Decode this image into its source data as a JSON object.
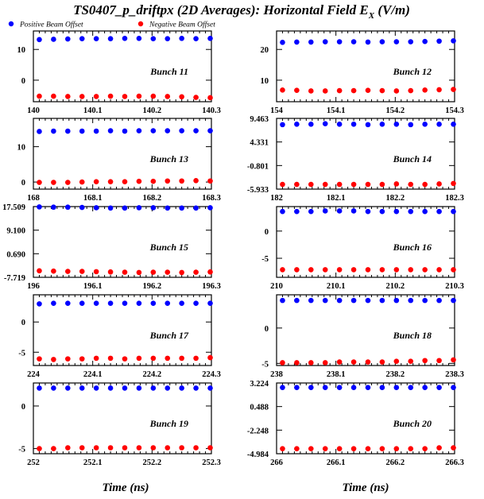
{
  "title": "TS0407_p_driftpx (2D Averages): Horizontal Field E",
  "title_sub": "X",
  "title_unit": "(V/m)",
  "legend": [
    {
      "label": "Positive Beam Offset",
      "color": "#0000ff"
    },
    {
      "label": "Negative Beam Offset",
      "color": "#ff0000"
    }
  ],
  "xlabel": "Time (ns)",
  "colors": {
    "positive": "#0000ff",
    "negative": "#ff0000",
    "frame": "#000000"
  },
  "chart_data": [
    {
      "type": "scatter",
      "panel": "Bunch 11",
      "xlim": [
        140,
        140.3
      ],
      "ylim": [
        -7,
        16
      ],
      "xticks": [
        "140",
        "140.1",
        "140.2",
        "140.3"
      ],
      "yticks": [
        0,
        10
      ],
      "ytick_labels": [
        "0",
        "10"
      ],
      "x": [
        140.01,
        140.034,
        140.058,
        140.082,
        140.106,
        140.13,
        140.154,
        140.178,
        140.202,
        140.226,
        140.25,
        140.274,
        140.298
      ],
      "series": [
        {
          "name": "Positive Beam Offset",
          "values": [
            13.2,
            13.3,
            13.4,
            13.5,
            13.5,
            13.5,
            13.6,
            13.6,
            13.5,
            13.5,
            13.6,
            13.5,
            13.6
          ]
        },
        {
          "name": "Negative Beam Offset",
          "values": [
            -5.2,
            -5.2,
            -5.3,
            -5.3,
            -5.3,
            -5.2,
            -5.3,
            -5.2,
            -5.2,
            -5.3,
            -5.4,
            -5.6,
            -5.7
          ]
        }
      ]
    },
    {
      "type": "scatter",
      "panel": "Bunch 12",
      "xlim": [
        154,
        154.3
      ],
      "ylim": [
        3,
        26
      ],
      "xticks": [
        "154",
        "154.1",
        "154.2",
        "154.3"
      ],
      "yticks": [
        10,
        20
      ],
      "ytick_labels": [
        "10",
        "20"
      ],
      "x": [
        154.01,
        154.034,
        154.058,
        154.082,
        154.106,
        154.13,
        154.154,
        154.178,
        154.202,
        154.226,
        154.25,
        154.274,
        154.298
      ],
      "series": [
        {
          "name": "Positive Beam Offset",
          "values": [
            22.3,
            22.4,
            22.4,
            22.5,
            22.5,
            22.5,
            22.4,
            22.5,
            22.5,
            22.5,
            22.6,
            22.7,
            22.8
          ]
        },
        {
          "name": "Negative Beam Offset",
          "values": [
            6.8,
            6.7,
            6.5,
            6.5,
            6.6,
            6.6,
            6.7,
            6.6,
            6.5,
            6.6,
            6.8,
            6.9,
            7.0
          ]
        }
      ]
    },
    {
      "type": "scatter",
      "panel": "Bunch 13",
      "xlim": [
        168,
        168.3
      ],
      "ylim": [
        -2,
        18
      ],
      "xticks": [
        "168",
        "168.1",
        "168.2",
        "168.3"
      ],
      "yticks": [
        0,
        10
      ],
      "ytick_labels": [
        "0",
        "10"
      ],
      "x": [
        168.01,
        168.034,
        168.058,
        168.082,
        168.106,
        168.13,
        168.154,
        168.178,
        168.202,
        168.226,
        168.25,
        168.274,
        168.298
      ],
      "series": [
        {
          "name": "Positive Beam Offset",
          "values": [
            14.3,
            14.4,
            14.4,
            14.4,
            14.4,
            14.5,
            14.4,
            14.5,
            14.5,
            14.5,
            14.5,
            14.5,
            14.5
          ]
        },
        {
          "name": "Negative Beam Offset",
          "values": [
            -0.1,
            -0.1,
            -0.1,
            0.0,
            0.1,
            0.1,
            0.1,
            0.2,
            0.2,
            0.3,
            0.3,
            0.4,
            0.3
          ]
        }
      ]
    },
    {
      "type": "scatter",
      "panel": "Bunch 14",
      "xlim": [
        182,
        182.3
      ],
      "ylim": [
        -5.933,
        9.463
      ],
      "xticks": [
        "182",
        "182.1",
        "182.2",
        "182.3"
      ],
      "yticks": [
        -5.933,
        -0.801,
        4.331,
        9.463
      ],
      "ytick_labels": [
        "-5.933",
        "-0.801",
        "4.331",
        "9.463"
      ],
      "x": [
        182.01,
        182.034,
        182.058,
        182.082,
        182.106,
        182.13,
        182.154,
        182.178,
        182.202,
        182.226,
        182.25,
        182.274,
        182.298
      ],
      "series": [
        {
          "name": "Positive Beam Offset",
          "values": [
            8.1,
            8.2,
            8.2,
            8.3,
            8.2,
            8.2,
            8.1,
            8.2,
            8.2,
            8.1,
            8.2,
            8.2,
            8.2
          ]
        },
        {
          "name": "Negative Beam Offset",
          "values": [
            -4.9,
            -4.9,
            -4.9,
            -4.9,
            -4.9,
            -4.9,
            -4.9,
            -4.9,
            -4.8,
            -4.9,
            -4.9,
            -4.8,
            -4.7
          ]
        }
      ]
    },
    {
      "type": "scatter",
      "panel": "Bunch 15",
      "xlim": [
        196,
        196.3
      ],
      "ylim": [
        -7.719,
        17.509
      ],
      "xticks": [
        "196",
        "196.1",
        "196.2",
        "196.3"
      ],
      "yticks": [
        -7.719,
        0.69,
        9.1,
        17.509
      ],
      "ytick_labels": [
        "-7.719",
        "0.690",
        "9.100",
        "17.509"
      ],
      "x": [
        196.01,
        196.034,
        196.058,
        196.082,
        196.106,
        196.13,
        196.154,
        196.178,
        196.202,
        196.226,
        196.25,
        196.274,
        196.298
      ],
      "series": [
        {
          "name": "Positive Beam Offset",
          "values": [
            17.4,
            17.3,
            17.3,
            17.2,
            17.1,
            17.0,
            17.0,
            17.1,
            17.1,
            17.0,
            17.0,
            17.0,
            17.1
          ]
        },
        {
          "name": "Negative Beam Offset",
          "values": [
            -5.4,
            -5.5,
            -5.6,
            -5.6,
            -5.7,
            -5.8,
            -5.9,
            -6.0,
            -5.9,
            -5.9,
            -6.0,
            -5.9,
            -5.8
          ]
        }
      ]
    },
    {
      "type": "scatter",
      "panel": "Bunch 16",
      "xlim": [
        210,
        210.3
      ],
      "ylim": [
        -8.5,
        4.5
      ],
      "xticks": [
        "210",
        "210.1",
        "210.2",
        "210.3"
      ],
      "yticks": [
        -5,
        0
      ],
      "ytick_labels": [
        "-5",
        "0"
      ],
      "x": [
        210.01,
        210.034,
        210.058,
        210.082,
        210.106,
        210.13,
        210.154,
        210.178,
        210.202,
        210.226,
        210.25,
        210.274,
        210.298
      ],
      "series": [
        {
          "name": "Positive Beam Offset",
          "values": [
            3.6,
            3.6,
            3.6,
            3.7,
            3.7,
            3.7,
            3.6,
            3.6,
            3.6,
            3.6,
            3.6,
            3.6,
            3.6
          ]
        },
        {
          "name": "Negative Beam Offset",
          "values": [
            -7.1,
            -7.1,
            -7.1,
            -7.1,
            -7.1,
            -7.1,
            -7.1,
            -7.1,
            -7.1,
            -7.1,
            -7.1,
            -7.1,
            -7.1
          ]
        }
      ]
    },
    {
      "type": "scatter",
      "panel": "Bunch 17",
      "xlim": [
        224,
        224.3
      ],
      "ylim": [
        -7.2,
        4.5
      ],
      "xticks": [
        "224",
        "224.1",
        "224.2",
        "224.3"
      ],
      "yticks": [
        -5,
        0
      ],
      "ytick_labels": [
        "-5",
        "0"
      ],
      "x": [
        224.01,
        224.034,
        224.058,
        224.082,
        224.106,
        224.13,
        224.154,
        224.178,
        224.202,
        224.226,
        224.25,
        224.274,
        224.298
      ],
      "series": [
        {
          "name": "Positive Beam Offset",
          "values": [
            3.0,
            3.1,
            3.1,
            3.1,
            3.1,
            3.1,
            3.1,
            3.1,
            3.1,
            3.1,
            3.1,
            3.1,
            3.1
          ]
        },
        {
          "name": "Negative Beam Offset",
          "values": [
            -6.1,
            -6.2,
            -6.1,
            -6.1,
            -6.0,
            -6.0,
            -6.1,
            -6.0,
            -6.0,
            -6.0,
            -6.0,
            -6.0,
            -5.9
          ]
        }
      ]
    },
    {
      "type": "scatter",
      "panel": "Bunch 18",
      "xlim": [
        238,
        238.3
      ],
      "ylim": [
        -5.3,
        4.7
      ],
      "xticks": [
        "238",
        "238.1",
        "238.2",
        "238.3"
      ],
      "yticks": [
        -5,
        0
      ],
      "ytick_labels": [
        "-5",
        "0"
      ],
      "x": [
        238.01,
        238.034,
        238.058,
        238.082,
        238.106,
        238.13,
        238.154,
        238.178,
        238.202,
        238.226,
        238.25,
        238.274,
        238.298
      ],
      "series": [
        {
          "name": "Positive Beam Offset",
          "values": [
            3.9,
            3.9,
            3.9,
            3.9,
            3.9,
            3.9,
            3.9,
            3.9,
            3.9,
            3.9,
            3.9,
            3.9,
            3.9
          ]
        },
        {
          "name": "Negative Beam Offset",
          "values": [
            -4.9,
            -4.9,
            -4.9,
            -4.9,
            -4.8,
            -4.8,
            -4.8,
            -4.8,
            -4.7,
            -4.7,
            -4.6,
            -4.6,
            -4.5
          ]
        }
      ]
    },
    {
      "type": "scatter",
      "panel": "Bunch 19",
      "xlim": [
        252,
        252.3
      ],
      "ylim": [
        -5.6,
        2.7
      ],
      "xticks": [
        "252",
        "252.1",
        "252.2",
        "252.3"
      ],
      "yticks": [
        -5,
        0
      ],
      "ytick_labels": [
        "-5",
        "0"
      ],
      "x": [
        252.01,
        252.034,
        252.058,
        252.082,
        252.106,
        252.13,
        252.154,
        252.178,
        252.202,
        252.226,
        252.25,
        252.274,
        252.298
      ],
      "series": [
        {
          "name": "Positive Beam Offset",
          "values": [
            2.1,
            2.1,
            2.1,
            2.1,
            2.1,
            2.1,
            2.1,
            2.1,
            2.1,
            2.1,
            2.1,
            2.1,
            2.1
          ]
        },
        {
          "name": "Negative Beam Offset",
          "values": [
            -5.0,
            -5.0,
            -4.9,
            -4.9,
            -4.9,
            -4.9,
            -4.9,
            -4.9,
            -4.9,
            -4.9,
            -4.9,
            -4.9,
            -4.9
          ]
        }
      ]
    },
    {
      "type": "scatter",
      "panel": "Bunch 20",
      "xlim": [
        266,
        266.3
      ],
      "ylim": [
        -4.984,
        3.224
      ],
      "xticks": [
        "266",
        "266.1",
        "266.2",
        "266.3"
      ],
      "yticks": [
        -4.984,
        -2.248,
        0.488,
        3.224
      ],
      "ytick_labels": [
        "-4.984",
        "-2.248",
        "0.488",
        "3.224"
      ],
      "x": [
        266.01,
        266.034,
        266.058,
        266.082,
        266.106,
        266.13,
        266.154,
        266.178,
        266.202,
        266.226,
        266.25,
        266.274,
        266.298
      ],
      "series": [
        {
          "name": "Positive Beam Offset",
          "values": [
            2.7,
            2.7,
            2.7,
            2.7,
            2.7,
            2.7,
            2.7,
            2.7,
            2.7,
            2.7,
            2.7,
            2.7,
            2.7
          ]
        },
        {
          "name": "Negative Beam Offset",
          "values": [
            -4.4,
            -4.4,
            -4.4,
            -4.4,
            -4.4,
            -4.4,
            -4.4,
            -4.4,
            -4.4,
            -4.4,
            -4.4,
            -4.3,
            -4.3
          ]
        }
      ]
    }
  ]
}
